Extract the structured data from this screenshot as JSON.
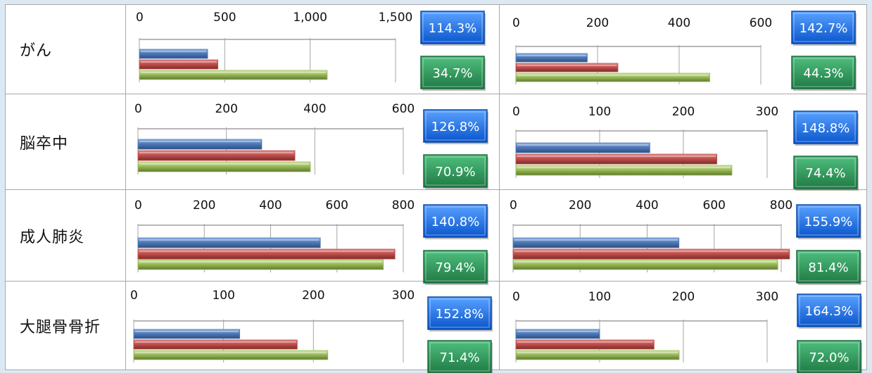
{
  "rows": [
    {
      "label": "がん"
    },
    {
      "label": "脳卒中"
    },
    {
      "label": "成人肺炎"
    },
    {
      "label": "大腿骨骨折"
    }
  ],
  "colors": {
    "blue_bar": "#4f7ab8",
    "red_bar": "#c0504d",
    "green_bar": "#9bbb59",
    "blue_badge": "#1f6fe8",
    "green_badge": "#2e9a5c"
  },
  "chart_data": [
    {
      "type": "bar",
      "row": "がん",
      "ticks": [
        "0",
        "500",
        "1,000",
        "1,500"
      ],
      "xlim": [
        0,
        1500
      ],
      "values": [
        400,
        460,
        1100
      ],
      "badges": [
        "114.3%",
        "34.7%"
      ]
    },
    {
      "type": "bar",
      "row": "がん",
      "ticks": [
        "0",
        "200",
        "400",
        "600"
      ],
      "xlim": [
        0,
        600
      ],
      "values": [
        175,
        250,
        475
      ],
      "badges": [
        "142.7%",
        "44.3%"
      ]
    },
    {
      "type": "bar",
      "row": "脳卒中",
      "ticks": [
        "0",
        "200",
        "400",
        "600"
      ],
      "xlim": [
        0,
        600
      ],
      "values": [
        280,
        355,
        390
      ],
      "badges": [
        "126.8%",
        "70.9%"
      ]
    },
    {
      "type": "bar",
      "row": "脳卒中",
      "ticks": [
        "0",
        "100",
        "200",
        "300"
      ],
      "xlim": [
        0,
        300
      ],
      "values": [
        160,
        240,
        258
      ],
      "badges": [
        "148.8%",
        "74.4%"
      ]
    },
    {
      "type": "bar",
      "row": "成人肺炎",
      "ticks": [
        "0",
        "200",
        "400",
        "600",
        "800"
      ],
      "xlim": [
        0,
        800
      ],
      "values": [
        550,
        775,
        740
      ],
      "badges": [
        "140.8%",
        "79.4%"
      ]
    },
    {
      "type": "bar",
      "row": "成人肺炎",
      "ticks": [
        "0",
        "200",
        "400",
        "600",
        "800"
      ],
      "xlim": [
        0,
        800
      ],
      "values": [
        495,
        825,
        790
      ],
      "badges": [
        "155.9%",
        "81.4%"
      ]
    },
    {
      "type": "bar",
      "row": "大腿骨骨折",
      "ticks": [
        "0",
        "100",
        "200",
        "300"
      ],
      "xlim": [
        0,
        300
      ],
      "values": [
        118,
        182,
        216
      ],
      "badges": [
        "152.8%",
        "71.4%"
      ]
    },
    {
      "type": "bar",
      "row": "大腿骨骨折",
      "ticks": [
        "0",
        "100",
        "200",
        "300"
      ],
      "xlim": [
        0,
        300
      ],
      "values": [
        100,
        165,
        195
      ],
      "badges": [
        "164.3%",
        "72.0%"
      ]
    }
  ]
}
